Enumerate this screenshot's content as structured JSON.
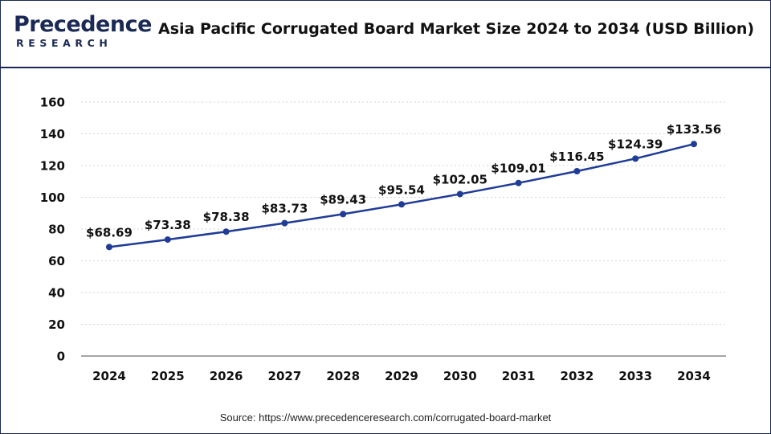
{
  "header": {
    "logo_main": "Precedence",
    "logo_sub": "RESEARCH",
    "title": "Asia Pacific Corrugated Board Market Size 2024 to 2034 (USD Billion)"
  },
  "chart_data": {
    "type": "line",
    "title": "Asia Pacific Corrugated Board Market Size 2024 to 2034 (USD Billion)",
    "xlabel": "",
    "ylabel": "",
    "categories": [
      "2024",
      "2025",
      "2026",
      "2027",
      "2028",
      "2029",
      "2030",
      "2031",
      "2032",
      "2033",
      "2034"
    ],
    "series": [
      {
        "values": [
          68.69,
          73.38,
          78.38,
          83.73,
          89.43,
          95.54,
          102.05,
          109.01,
          116.45,
          124.39,
          133.56
        ],
        "labels": [
          "$68.69",
          "$73.38",
          "$78.38",
          "$83.73",
          "$89.43",
          "$95.54",
          "$102.05",
          "$109.01",
          "$116.45",
          "$124.39",
          "$133.56"
        ]
      }
    ],
    "ylim": [
      0,
      160
    ],
    "yticks": [
      0,
      20,
      40,
      60,
      80,
      100,
      120,
      140,
      160
    ],
    "grid": true,
    "legend": "none",
    "line_color": "#1f3c96",
    "marker_color": "#1f3c96"
  },
  "footer": {
    "source": "Source: https://www.precedenceresearch.com/corrugated-board-market"
  }
}
